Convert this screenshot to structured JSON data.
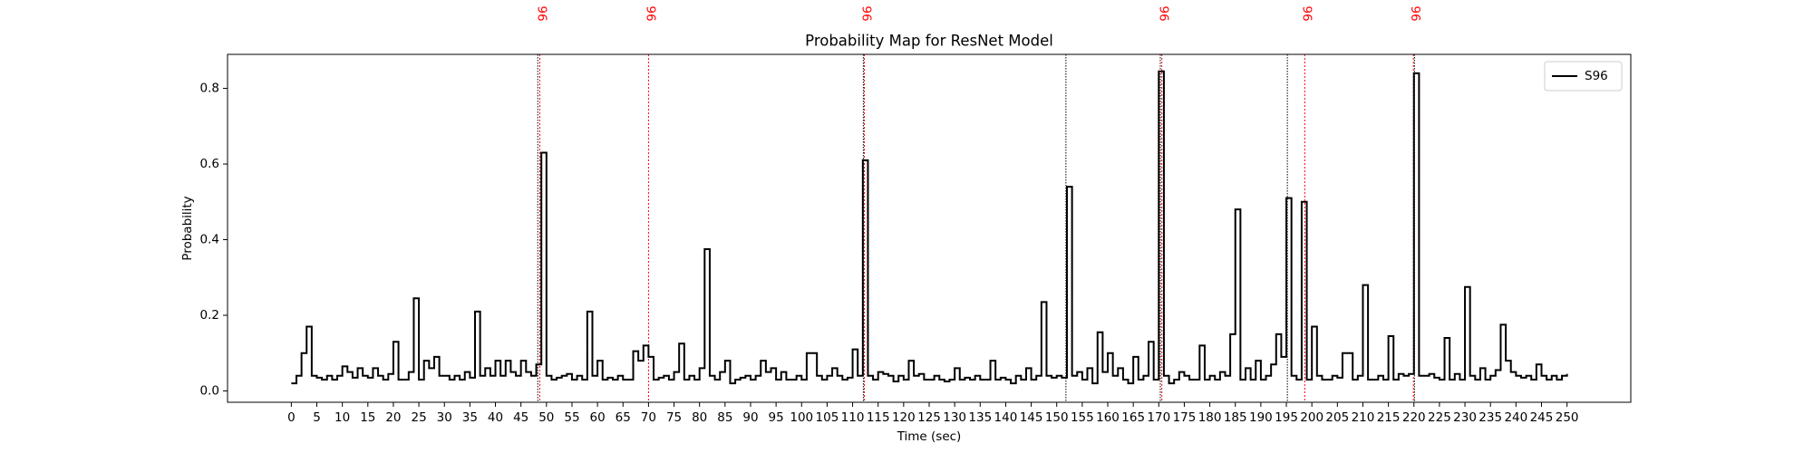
{
  "chart_data": {
    "type": "step",
    "title": "Probability Map for ResNet Model",
    "xlabel": "Time (sec)",
    "ylabel": "Probability",
    "legend": "upper right",
    "xlim": [
      -12.5,
      262.5
    ],
    "ylim": [
      -0.03,
      0.89
    ],
    "xticks": [
      0,
      5,
      10,
      15,
      20,
      25,
      30,
      35,
      40,
      45,
      50,
      55,
      60,
      65,
      70,
      75,
      80,
      85,
      90,
      95,
      100,
      105,
      110,
      115,
      120,
      125,
      130,
      135,
      140,
      145,
      150,
      155,
      160,
      165,
      170,
      175,
      180,
      185,
      190,
      195,
      200,
      205,
      210,
      215,
      220,
      225,
      230,
      235,
      240,
      245,
      250
    ],
    "yticks": [
      {
        "value": 0,
        "label": "0.0"
      },
      0.2,
      0.4,
      0.6,
      0.8
    ],
    "x": [
      0,
      1,
      2,
      3,
      4,
      5,
      6,
      7,
      8,
      9,
      10,
      11,
      12,
      13,
      14,
      15,
      16,
      17,
      18,
      19,
      20,
      21,
      22,
      23,
      24,
      25,
      26,
      27,
      28,
      29,
      30,
      31,
      32,
      33,
      34,
      35,
      36,
      37,
      38,
      39,
      40,
      41,
      42,
      43,
      44,
      45,
      46,
      47,
      48,
      49,
      50,
      51,
      52,
      53,
      54,
      55,
      56,
      57,
      58,
      59,
      60,
      61,
      62,
      63,
      64,
      65,
      66,
      67,
      68,
      69,
      70,
      71,
      72,
      73,
      74,
      75,
      76,
      77,
      78,
      79,
      80,
      81,
      82,
      83,
      84,
      85,
      86,
      87,
      88,
      89,
      90,
      91,
      92,
      93,
      94,
      95,
      96,
      97,
      98,
      99,
      100,
      101,
      102,
      103,
      104,
      105,
      106,
      107,
      108,
      109,
      110,
      111,
      112,
      113,
      114,
      115,
      116,
      117,
      118,
      119,
      120,
      121,
      122,
      123,
      124,
      125,
      126,
      127,
      128,
      129,
      130,
      131,
      132,
      133,
      134,
      135,
      136,
      137,
      138,
      139,
      140,
      141,
      142,
      143,
      144,
      145,
      146,
      147,
      148,
      149,
      150,
      151,
      152,
      153,
      154,
      155,
      156,
      157,
      158,
      159,
      160,
      161,
      162,
      163,
      164,
      165,
      166,
      167,
      168,
      169,
      170,
      171,
      172,
      173,
      174,
      175,
      176,
      177,
      178,
      179,
      180,
      181,
      182,
      183,
      184,
      185,
      186,
      187,
      188,
      189,
      190,
      191,
      192,
      193,
      194,
      195,
      196,
      197,
      198,
      199,
      200,
      201,
      202,
      203,
      204,
      205,
      206,
      207,
      208,
      209,
      210,
      211,
      212,
      213,
      214,
      215,
      216,
      217,
      218,
      219,
      220,
      221,
      222,
      223,
      224,
      225,
      226,
      227,
      228,
      229,
      230,
      231,
      232,
      233,
      234,
      235,
      236,
      237,
      238,
      239,
      240,
      241,
      242,
      243,
      244,
      245,
      246,
      247,
      248,
      249,
      250
    ],
    "series": [
      {
        "name": "S96",
        "color": "#000000",
        "values": [
          0.02,
          0.04,
          0.1,
          0.17,
          0.04,
          0.035,
          0.03,
          0.04,
          0.03,
          0.04,
          0.065,
          0.05,
          0.035,
          0.06,
          0.04,
          0.035,
          0.06,
          0.04,
          0.03,
          0.045,
          0.13,
          0.03,
          0.03,
          0.05,
          0.245,
          0.03,
          0.08,
          0.06,
          0.09,
          0.04,
          0.04,
          0.03,
          0.04,
          0.03,
          0.05,
          0.035,
          0.21,
          0.04,
          0.06,
          0.04,
          0.08,
          0.04,
          0.08,
          0.05,
          0.04,
          0.08,
          0.05,
          0.04,
          0.07,
          0.63,
          0.04,
          0.03,
          0.035,
          0.04,
          0.045,
          0.03,
          0.04,
          0.03,
          0.21,
          0.04,
          0.08,
          0.03,
          0.035,
          0.03,
          0.04,
          0.03,
          0.03,
          0.105,
          0.08,
          0.12,
          0.09,
          0.03,
          0.035,
          0.04,
          0.03,
          0.05,
          0.125,
          0.03,
          0.04,
          0.03,
          0.06,
          0.375,
          0.04,
          0.03,
          0.05,
          0.08,
          0.02,
          0.03,
          0.035,
          0.04,
          0.03,
          0.04,
          0.08,
          0.05,
          0.06,
          0.03,
          0.05,
          0.03,
          0.03,
          0.04,
          0.03,
          0.1,
          0.1,
          0.04,
          0.03,
          0.04,
          0.06,
          0.04,
          0.03,
          0.035,
          0.11,
          0.04,
          0.61,
          0.04,
          0.03,
          0.05,
          0.045,
          0.04,
          0.025,
          0.04,
          0.03,
          0.08,
          0.04,
          0.045,
          0.03,
          0.03,
          0.04,
          0.03,
          0.025,
          0.03,
          0.06,
          0.03,
          0.035,
          0.03,
          0.04,
          0.03,
          0.03,
          0.08,
          0.03,
          0.035,
          0.03,
          0.02,
          0.04,
          0.03,
          0.06,
          0.03,
          0.04,
          0.235,
          0.04,
          0.035,
          0.04,
          0.035,
          0.54,
          0.04,
          0.05,
          0.03,
          0.06,
          0.02,
          0.155,
          0.05,
          0.1,
          0.04,
          0.06,
          0.03,
          0.02,
          0.09,
          0.03,
          0.04,
          0.13,
          0.03,
          0.845,
          0.04,
          0.02,
          0.03,
          0.05,
          0.04,
          0.03,
          0.03,
          0.12,
          0.03,
          0.04,
          0.03,
          0.05,
          0.04,
          0.15,
          0.48,
          0.03,
          0.06,
          0.03,
          0.08,
          0.03,
          0.04,
          0.07,
          0.15,
          0.09,
          0.51,
          0.04,
          0.03,
          0.5,
          0.03,
          0.17,
          0.04,
          0.03,
          0.03,
          0.04,
          0.035,
          0.1,
          0.1,
          0.03,
          0.04,
          0.28,
          0.03,
          0.03,
          0.04,
          0.03,
          0.145,
          0.03,
          0.045,
          0.04,
          0.045,
          0.84,
          0.04,
          0.04,
          0.045,
          0.035,
          0.03,
          0.14,
          0.03,
          0.045,
          0.03,
          0.275,
          0.04,
          0.03,
          0.06,
          0.03,
          0.04,
          0.055,
          0.175,
          0.08,
          0.05,
          0.04,
          0.035,
          0.04,
          0.03,
          0.07,
          0.04,
          0.03,
          0.04,
          0.03,
          0.04,
          0.045
        ]
      }
    ],
    "vlines": [
      {
        "x": 48.7,
        "color": "#ff0000",
        "label": "96"
      },
      {
        "x": 70.0,
        "color": "#ff0000",
        "label": "96"
      },
      {
        "x": 112.3,
        "color": "#ff0000",
        "label": "96"
      },
      {
        "x": 170.6,
        "color": "#ff0000",
        "label": "96"
      },
      {
        "x": 198.6,
        "color": "#ff0000",
        "label": "96"
      },
      {
        "x": 219.9,
        "color": "#ff0000",
        "label": "96"
      },
      {
        "x": 48.3,
        "color": "#000000"
      },
      {
        "x": 112.1,
        "color": "#000000"
      },
      {
        "x": 151.8,
        "color": "#000000"
      },
      {
        "x": 170.3,
        "color": "#000000"
      },
      {
        "x": 195.2,
        "color": "#000000"
      },
      {
        "x": 220.1,
        "color": "#000000"
      }
    ]
  }
}
